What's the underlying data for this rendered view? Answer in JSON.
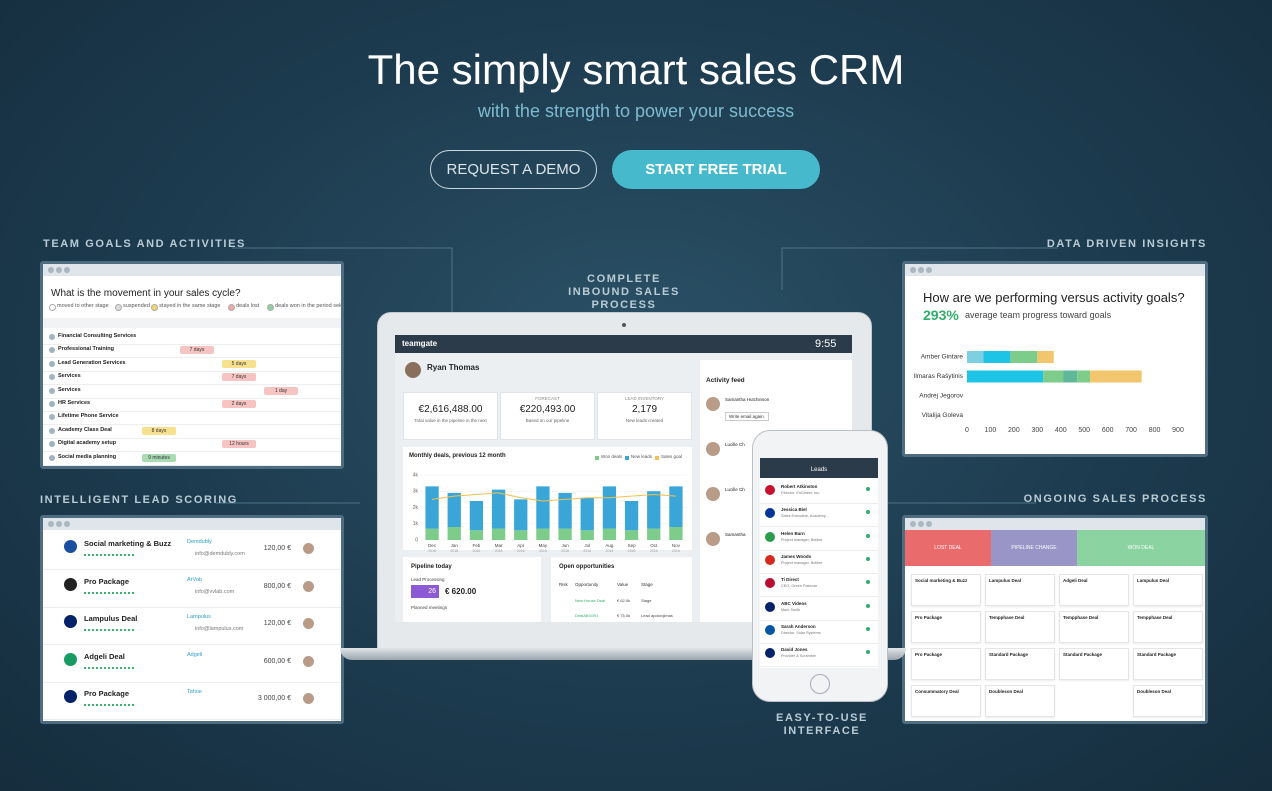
{
  "hero": {
    "title": "The simply smart sales CRM",
    "subtitle": "with the strength to power your success",
    "demo_button": "REQUEST A DEMO",
    "trial_button": "START FREE TRIAL"
  },
  "callouts": {
    "team_goals": "TEAM GOALS AND ACTIVITIES",
    "data_insights": "DATA DRIVEN INSIGHTS",
    "inbound": "COMPLETE INBOUND SALES PROCESS",
    "lead_scoring": "INTELLIGENT LEAD SCORING",
    "ongoing": "ONGOING SALES PROCESS",
    "interface": "EASY-TO-USE INTERFACE"
  },
  "team_goals": {
    "question": "What is the movement in your sales cycle?",
    "legend": [
      "moved to other stage",
      "suspended",
      "stayed in the same stage",
      "deals lost",
      "deals won in the period selected"
    ],
    "legend_colors": [
      "#ffffff",
      "#dddddd",
      "#f5d76e",
      "#f4a9a8",
      "#8fd19e"
    ],
    "rows": [
      {
        "name": "Financial Consulting Services"
      },
      {
        "name": "Professional Training",
        "chip": "7 days",
        "chip_kind": "red"
      },
      {
        "name": "Lead Generation Services",
        "chip": "5 days",
        "chip_kind": "yellow"
      },
      {
        "name": "Services",
        "chip": "7 days",
        "chip_kind": "red"
      },
      {
        "name": "Services",
        "chip": "1 day",
        "chip_kind": "red"
      },
      {
        "name": "HR Services",
        "chip": "2 days",
        "chip_kind": "red"
      },
      {
        "name": "Lifetime Phone Service"
      },
      {
        "name": "Academy Class Deal",
        "chip": "8 days",
        "chip_kind": "yellow"
      },
      {
        "name": "Digital academy setup",
        "chip": "12 hours",
        "chip_kind": "red"
      },
      {
        "name": "Social media planning",
        "chip": "9 minutes",
        "chip_kind": "green"
      }
    ]
  },
  "data_insights": {
    "question": "How are we performing versus activity goals?",
    "percent": "293%",
    "caption": "average team progress toward goals",
    "chart": {
      "type": "stacked-bar-horizontal",
      "xlim": [
        0,
        900
      ],
      "xticks": [
        0,
        100,
        200,
        300,
        400,
        500,
        600,
        700,
        800,
        900
      ],
      "people": [
        {
          "name": "Amber Gintare",
          "segments": [
            {
              "value": 70,
              "color": "#7fcfe3"
            },
            {
              "value": 115,
              "color": "#1ec4e6"
            },
            {
              "value": 115,
              "color": "#7dcc8a"
            },
            {
              "value": 70,
              "color": "#f2c66d"
            }
          ]
        },
        {
          "name": "Ilmaras Rašytinis",
          "segments": [
            {
              "value": 325,
              "color": "#1ec4e6"
            },
            {
              "value": 85,
              "color": "#7dcc8a"
            },
            {
              "value": 60,
              "color": "#5fb89a"
            },
            {
              "value": 55,
              "color": "#7dcc8a"
            },
            {
              "value": 220,
              "color": "#f2c66d"
            }
          ]
        },
        {
          "name": "Andrej Jegorov",
          "segments": []
        },
        {
          "name": "Vitalija Goleva",
          "segments": []
        }
      ]
    }
  },
  "laptop": {
    "logo": "teamgate",
    "clock": "9:55",
    "user": "Ryan Thomas",
    "kpis": [
      {
        "value": "€2,616,488.00",
        "note": "Total value in the pipeline in the next"
      },
      {
        "label": "FORECAST",
        "value": "€220,493.00",
        "note": "Based on our pipeline"
      },
      {
        "label": "LEAD INVENTORY",
        "value": "2,179",
        "note": "New leads created"
      }
    ],
    "monthly_chart": {
      "type": "bar",
      "title": "Monthly deals, previous 12 month",
      "categories": [
        "Dec",
        "Jan",
        "Feb",
        "Mar",
        "Apr",
        "May",
        "Jun",
        "Jul",
        "Aug",
        "Sep",
        "Oct",
        "Nov"
      ],
      "years": [
        "2015",
        "2016",
        "2016",
        "2016",
        "2016",
        "2016",
        "2016",
        "2016",
        "2016",
        "2016",
        "2016",
        "2016"
      ],
      "ylim": [
        0,
        4000
      ],
      "yticks": [
        0,
        {
          "value": 1000,
          "label": "1k"
        },
        {
          "value": 2000,
          "label": "2k"
        },
        {
          "value": 3000,
          "label": "3k"
        },
        {
          "value": 4000,
          "label": "4k"
        }
      ],
      "series": [
        {
          "name": "Won deals",
          "color": "#7dcc8a",
          "values": [
            700,
            800,
            600,
            700,
            600,
            700,
            700,
            600,
            700,
            600,
            700,
            800
          ]
        },
        {
          "name": "New leads",
          "color": "#3aa6d8",
          "values": [
            2600,
            2100,
            1800,
            2400,
            1900,
            2600,
            2200,
            2000,
            2600,
            1800,
            2300,
            2500
          ]
        },
        {
          "name": "Sales goal",
          "color": "#f2c14e",
          "line": true,
          "values": [
            2500,
            2700,
            2800,
            2900,
            2600,
            2400,
            2500,
            2600,
            2600,
            2700,
            2800,
            2700
          ]
        }
      ]
    },
    "pipeline": {
      "title": "Pipeline today",
      "stage": "Lead Processing",
      "count": "26",
      "amount": "€ 620.00",
      "next": "Planned meetings"
    },
    "opportunities": {
      "title": "Open opportunities",
      "headers": [
        "Risk",
        "Opportunity",
        "Value",
        "Stage"
      ],
      "rows": [
        [
          "New House Deal",
          "€ 62.0k",
          "Stage"
        ],
        [
          "DealABG091",
          "€ 75.0k",
          "Lead apdorojimas"
        ]
      ]
    },
    "feed": {
      "title": "Activity feed",
      "items": [
        "Samantha Hutchinson",
        "Lucille Ch",
        "Lucille Ch",
        "Samantha"
      ],
      "action": "Write email again."
    }
  },
  "phone": {
    "title": "Leads",
    "items": [
      {
        "name": "Robert Atkinston",
        "role": "Director, EnGineer, Inc."
      },
      {
        "name": "Jessica Biel",
        "role": "Sales Executive, Academy..."
      },
      {
        "name": "Helen Barn",
        "role": "Project manager, Botline"
      },
      {
        "name": "James Woods",
        "role": "Project manager, Botline"
      },
      {
        "name": "Ti Direct",
        "role": "CEO, Green Palomar"
      },
      {
        "name": "ABC Videos",
        "role": "Mark Smith"
      },
      {
        "name": "Sarah Anderson",
        "role": "Director, Solar Systems"
      },
      {
        "name": "David Jones",
        "role": "Provider & Scramble"
      }
    ]
  },
  "lead_scoring": {
    "rows": [
      {
        "name": "Social marketing & Buzz",
        "company": "Demdubly",
        "email": "info@demdubly.com",
        "amount": "120,00 €"
      },
      {
        "name": "Pro Package",
        "company": "ArVob",
        "email": "info@vvlab.com",
        "amount": "800,00 €"
      },
      {
        "name": "Lampulus Deal",
        "company": "Lampulus",
        "email": "info@lampulus.com",
        "amount": "120,00 €"
      },
      {
        "name": "Adgeli Deal",
        "company": "Adgeli",
        "amount": "600,00 €"
      },
      {
        "name": "Pro Package",
        "company": "Tahoe",
        "amount": "3 000,00 €"
      }
    ]
  },
  "ongoing": {
    "headers": [
      "LOST DEAL",
      "PIPELINE CHANGE",
      "WON DEAL"
    ],
    "columns": [
      [
        "Social marketing & Buzz",
        "Pro Package",
        "Pro Package",
        "Consummatory Deal"
      ],
      [
        "Lampulus Deal",
        "Tempphase Deal",
        "Standard Package",
        "Doubleson Deal"
      ],
      [
        "Adgeli Deal",
        "Tempphase Deal",
        "Standard Package"
      ],
      [
        "Lampulus Deal",
        "Tempphase Deal",
        "Standard Package",
        "Doubleson Deal"
      ]
    ]
  }
}
